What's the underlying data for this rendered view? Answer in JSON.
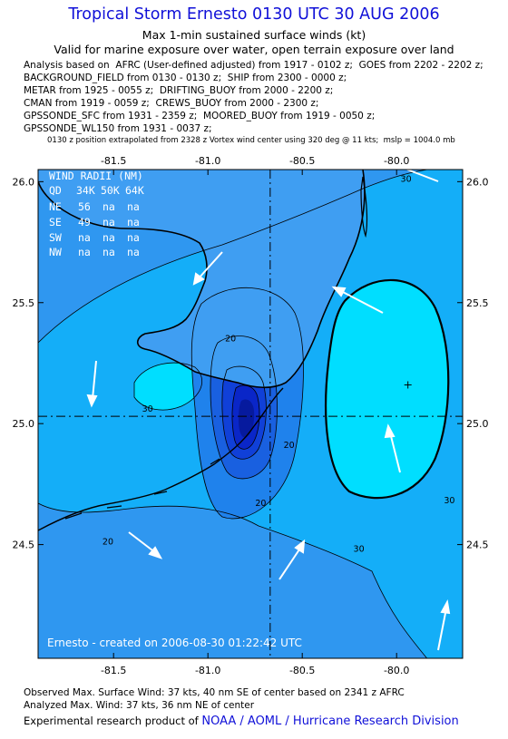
{
  "header": {
    "title": "Tropical Storm Ernesto 0130 UTC 30 AUG 2006",
    "subtitle1": "Max 1-min sustained surface winds (kt)",
    "subtitle2": "Valid for marine exposure over water, open terrain exposure over land",
    "analysis_lines": [
      "Analysis based on  AFRC (User-defined adjusted) from 1917 - 0102 z;  GOES from 2202 - 2202 z;",
      "BACKGROUND_FIELD from 0130 - 0130 z;  SHIP from 2300 - 0000 z;",
      "METAR from 1925 - 0055 z;  DRIFTING_BUOY from 2000 - 2200 z;",
      "CMAN from 1919 - 0059 z;  CREWS_BUOY from 2000 - 2300 z;",
      "GPSSONDE_SFC from 1931 - 2359 z;  MOORED_BUOY from 1919 - 0050 z;",
      "GPSSONDE_WL150 from 1931 - 0037 z;"
    ],
    "position_note": "0130 z position extrapolated from 2328 z Vortex wind center using 320 deg @ 11 kts;  mslp = 1004.0 mb"
  },
  "map": {
    "lon_ticks": [
      "-81.5",
      "-81.0",
      "-80.5",
      "-80.0"
    ],
    "lat_ticks": [
      "26.0",
      "25.5",
      "25.0",
      "24.5"
    ],
    "lon_range": [
      -81.9,
      -79.65
    ],
    "lat_range": [
      24.03,
      26.05
    ],
    "center": {
      "lon": -80.67,
      "lat": 25.03
    },
    "max_wind_marker": {
      "lon": -79.94,
      "lat": 25.16
    },
    "contour_labels": [
      {
        "text": "20",
        "lon": -80.88,
        "lat": 25.34
      },
      {
        "text": "30",
        "lon": -81.32,
        "lat": 25.05
      },
      {
        "text": "20",
        "lon": -80.57,
        "lat": 24.9
      },
      {
        "text": "20",
        "lon": -80.72,
        "lat": 24.66
      },
      {
        "text": "20",
        "lon": -81.53,
        "lat": 24.5
      },
      {
        "text": "30",
        "lon": -80.2,
        "lat": 24.47
      },
      {
        "text": "30",
        "lon": -79.72,
        "lat": 24.67
      },
      {
        "text": "30",
        "lon": -79.95,
        "lat": 26.0
      }
    ],
    "colors": {
      "lt20": "#2f97f0",
      "c20_30": "#14aef8",
      "gt30": "#00deff",
      "inner20": "#1f82ec",
      "inner25": "#1960e0",
      "inner30": "#1040d8",
      "inner35": "#0a26c8",
      "inner40": "#061a9e",
      "land": "#3f9ef2"
    },
    "wind_radii": {
      "title": "WIND RADII (NM)",
      "header": [
        "QD",
        "34K",
        "50K",
        "64K"
      ],
      "rows": [
        [
          "NE",
          "56",
          "na",
          "na"
        ],
        [
          "SE",
          "49",
          "na",
          "na"
        ],
        [
          "SW",
          "na",
          "na",
          "na"
        ],
        [
          "NW",
          "na",
          "na",
          "na"
        ]
      ]
    },
    "credit": "Ernesto - created on 2006-08-30 01:22:42 UTC"
  },
  "footer": {
    "observed": "Observed Max. Surface Wind: 37 kts, 40 nm SE of center based on 2341 z AFRC",
    "analyzed": "Analyzed Max. Wind: 37 kts, 36 nm NE of center",
    "credit_prefix": "Experimental research product of ",
    "credit_org": "NOAA / AOML / Hurricane Research Division"
  }
}
